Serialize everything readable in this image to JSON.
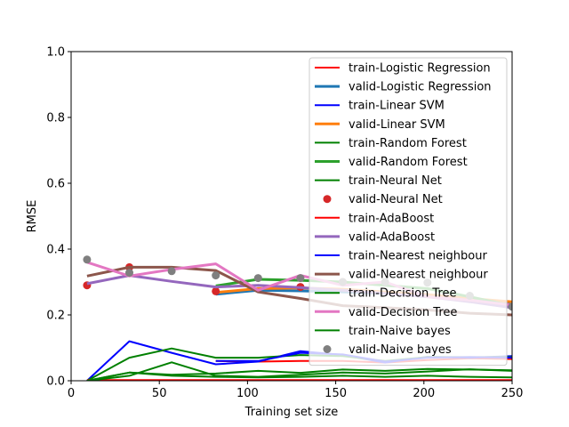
{
  "chart_data": {
    "type": "line",
    "title": "",
    "xlabel": "Training set size",
    "ylabel": "RMSE",
    "xlim": [
      0,
      250
    ],
    "ylim": [
      0,
      1.0
    ],
    "xticks": [
      0,
      50,
      100,
      150,
      200,
      250
    ],
    "yticks": [
      0.0,
      0.2,
      0.4,
      0.6,
      0.8,
      1.0
    ],
    "xtick_labels": [
      "0",
      "50",
      "100",
      "150",
      "200",
      "250"
    ],
    "ytick_labels": [
      "0.0",
      "0.2",
      "0.4",
      "0.6",
      "0.8",
      "1.0"
    ],
    "grid": false,
    "legend_position": "top-right",
    "series": [
      {
        "name": "train-Logistic Regression",
        "color": "#ff0000",
        "style": "line",
        "lw": 2,
        "x": [
          82,
          106,
          130,
          154,
          178,
          202,
          226,
          250
        ],
        "y": [
          0.06,
          0.058,
          0.06,
          0.06,
          0.055,
          0.063,
          0.068,
          0.066
        ]
      },
      {
        "name": "valid-Logistic Regression",
        "color": "#1f77b4",
        "style": "line",
        "lw": 3,
        "x": [
          82,
          106,
          130,
          154,
          178,
          202,
          226,
          250
        ],
        "y": [
          0.263,
          0.275,
          0.273,
          0.27,
          0.265,
          0.26,
          0.25,
          0.235
        ]
      },
      {
        "name": "train-Linear SVM",
        "color": "#0000ff",
        "style": "line",
        "lw": 2,
        "x": [
          9,
          33,
          57,
          82,
          106,
          130,
          154,
          178,
          202,
          226,
          250
        ],
        "y": [
          0.0,
          0.12,
          0.085,
          0.05,
          0.058,
          0.09,
          0.078,
          0.055,
          0.073,
          0.07,
          0.075
        ]
      },
      {
        "name": "valid-Linear SVM",
        "color": "#ff7f0e",
        "style": "line",
        "lw": 3,
        "x": [
          82,
          106,
          130,
          154,
          178,
          202,
          226,
          250
        ],
        "y": [
          0.268,
          0.28,
          0.282,
          0.278,
          0.27,
          0.262,
          0.25,
          0.24
        ]
      },
      {
        "name": "train-Random Forest",
        "color": "#008000",
        "style": "line",
        "lw": 2,
        "x": [
          9,
          33,
          57,
          82,
          106,
          130,
          154,
          178,
          202,
          226,
          250
        ],
        "y": [
          0.0,
          0.07,
          0.098,
          0.07,
          0.07,
          0.078,
          0.075,
          0.06,
          0.072,
          0.072,
          0.072
        ]
      },
      {
        "name": "valid-Random Forest",
        "color": "#2ca02c",
        "style": "line",
        "lw": 3,
        "x": [
          82,
          106,
          130,
          154,
          178,
          202,
          226,
          250
        ],
        "y": [
          0.288,
          0.308,
          0.305,
          0.3,
          0.29,
          0.28,
          0.255,
          0.228
        ]
      },
      {
        "name": "train-Neural Net",
        "color": "#008000",
        "style": "line",
        "lw": 2,
        "x": [
          9,
          33,
          57,
          82,
          106,
          130,
          154,
          178,
          202,
          226,
          250
        ],
        "y": [
          0.0,
          0.025,
          0.018,
          0.022,
          0.03,
          0.024,
          0.034,
          0.03,
          0.036,
          0.034,
          0.032
        ]
      },
      {
        "name": "valid-Neural Net",
        "color": "#d62728",
        "style": "marker",
        "x": [
          9,
          33,
          82,
          130,
          154
        ],
        "y": [
          0.29,
          0.345,
          0.272,
          0.285,
          0.3
        ]
      },
      {
        "name": "train-AdaBoost",
        "color": "#ff0000",
        "style": "line",
        "lw": 2,
        "x": [
          9,
          33,
          57,
          82,
          106,
          130,
          154,
          178,
          202,
          226,
          250
        ],
        "y": [
          0.002,
          0.002,
          0.002,
          0.002,
          0.002,
          0.002,
          0.002,
          0.002,
          0.002,
          0.002,
          0.002
        ]
      },
      {
        "name": "valid-AdaBoost",
        "color": "#9467bd",
        "style": "line",
        "lw": 3,
        "x": [
          9,
          33,
          57,
          82,
          106,
          130,
          154,
          178,
          202,
          226,
          250
        ],
        "y": [
          0.295,
          0.32,
          0.302,
          0.285,
          0.29,
          0.283,
          0.275,
          0.265,
          0.255,
          0.24,
          0.222
        ]
      },
      {
        "name": "train-Nearest neighbour",
        "color": "#0000ff",
        "style": "line",
        "lw": 2,
        "x": [
          82,
          106,
          130,
          154,
          178,
          202,
          226,
          250
        ],
        "y": [
          0.06,
          0.06,
          0.085,
          0.08,
          0.058,
          0.07,
          0.072,
          0.07
        ]
      },
      {
        "name": "valid-Nearest neighbour",
        "color": "#8c564b",
        "style": "line",
        "lw": 3,
        "x": [
          9,
          33,
          57,
          82,
          106,
          130,
          154,
          178,
          202,
          226,
          250
        ],
        "y": [
          0.318,
          0.345,
          0.345,
          0.335,
          0.27,
          0.25,
          0.228,
          0.222,
          0.215,
          0.205,
          0.2
        ]
      },
      {
        "name": "train-Decision Tree",
        "color": "#008000",
        "style": "line",
        "lw": 2,
        "x": [
          9,
          33,
          57,
          82,
          106,
          130,
          154,
          178,
          202,
          226,
          250
        ],
        "y": [
          0.0,
          0.015,
          0.056,
          0.015,
          0.012,
          0.018,
          0.025,
          0.022,
          0.028,
          0.035,
          0.03
        ]
      },
      {
        "name": "valid-Decision Tree",
        "color": "#e377c2",
        "style": "line",
        "lw": 3,
        "x": [
          9,
          33,
          57,
          82,
          106,
          130,
          154,
          178,
          202,
          226,
          250
        ],
        "y": [
          0.36,
          0.318,
          0.338,
          0.355,
          0.275,
          0.32,
          0.29,
          0.3,
          0.255,
          0.245,
          0.23
        ]
      },
      {
        "name": "train-Naive bayes",
        "color": "#008000",
        "style": "line",
        "lw": 2,
        "x": [
          9,
          33,
          57,
          82,
          106,
          130,
          154,
          178,
          202,
          226,
          250
        ],
        "y": [
          0.0,
          0.025,
          0.015,
          0.012,
          0.01,
          0.012,
          0.015,
          0.012,
          0.015,
          0.012,
          0.01
        ]
      },
      {
        "name": "valid-Naive bayes",
        "color": "#7f7f7f",
        "style": "marker",
        "x": [
          9,
          33,
          57,
          82,
          106,
          130,
          154,
          178,
          202,
          226,
          250
        ],
        "y": [
          0.368,
          0.328,
          0.333,
          0.32,
          0.312,
          0.312,
          0.3,
          0.3,
          0.298,
          0.258,
          0.225
        ]
      }
    ]
  }
}
